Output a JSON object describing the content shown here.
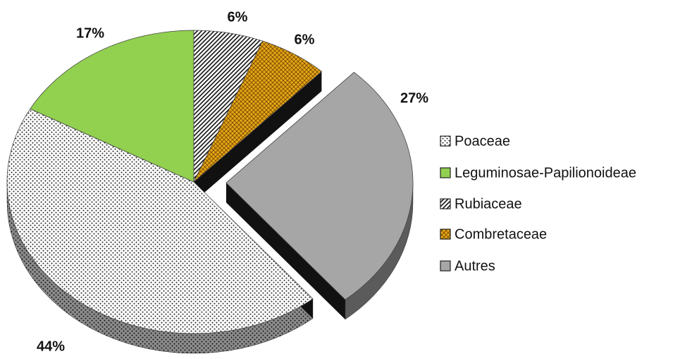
{
  "chart_data": {
    "type": "pie",
    "categories": [
      "Poaceae",
      "Leguminosae-Papilionoideae",
      "Rubiaceae",
      "Combretaceae",
      "Autres"
    ],
    "values": [
      44,
      17,
      6,
      6,
      27
    ],
    "value_labels": [
      "44%",
      "17%",
      "6%",
      "6%",
      "27%"
    ],
    "colors": [
      "#ffffff",
      "#92d050",
      "#ffffff",
      "#e6a817",
      "#a6a6a6"
    ],
    "exploded": "Autres",
    "legend": "right"
  }
}
